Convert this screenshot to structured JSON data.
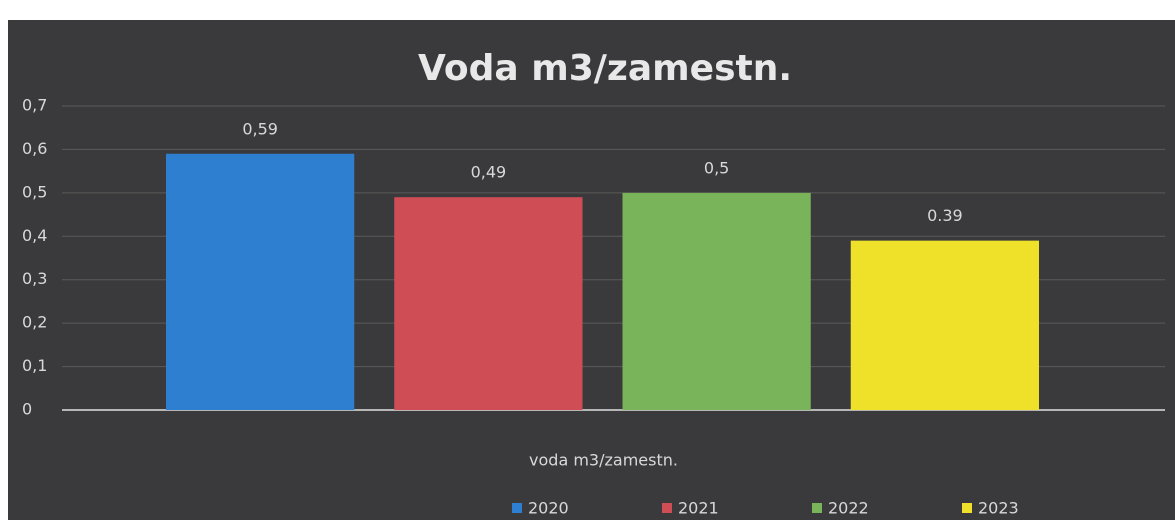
{
  "chart_data": {
    "type": "bar",
    "title": "Voda m3/zamestn.",
    "categories": [
      "voda m3/zamestn."
    ],
    "series": [
      {
        "name": "2020",
        "color": "#2e7fd0",
        "values": [
          0.59
        ],
        "value_labels": [
          "0,59"
        ]
      },
      {
        "name": "2021",
        "color": "#cf4d55",
        "values": [
          0.49
        ],
        "value_labels": [
          "0,49"
        ]
      },
      {
        "name": "2022",
        "color": "#79b35a",
        "values": [
          0.5
        ],
        "value_labels": [
          "0,5"
        ]
      },
      {
        "name": "2023",
        "color": "#efe02a",
        "values": [
          0.39
        ],
        "value_labels": [
          "0.39"
        ]
      }
    ],
    "ylim": [
      0,
      0.7
    ],
    "yticks": [
      0,
      {
        "value": 0.1,
        "label": "0,1"
      },
      {
        "value": 0.2,
        "label": "0,2"
      },
      {
        "value": 0.3,
        "label": "0,3"
      },
      {
        "value": 0.4,
        "label": "0,4"
      },
      {
        "value": 0.5,
        "label": "0,5"
      },
      {
        "value": 0.6,
        "label": "0,6"
      },
      {
        "value": 0.7,
        "label": "0,7"
      }
    ],
    "grid": true,
    "legend": "bottom"
  }
}
